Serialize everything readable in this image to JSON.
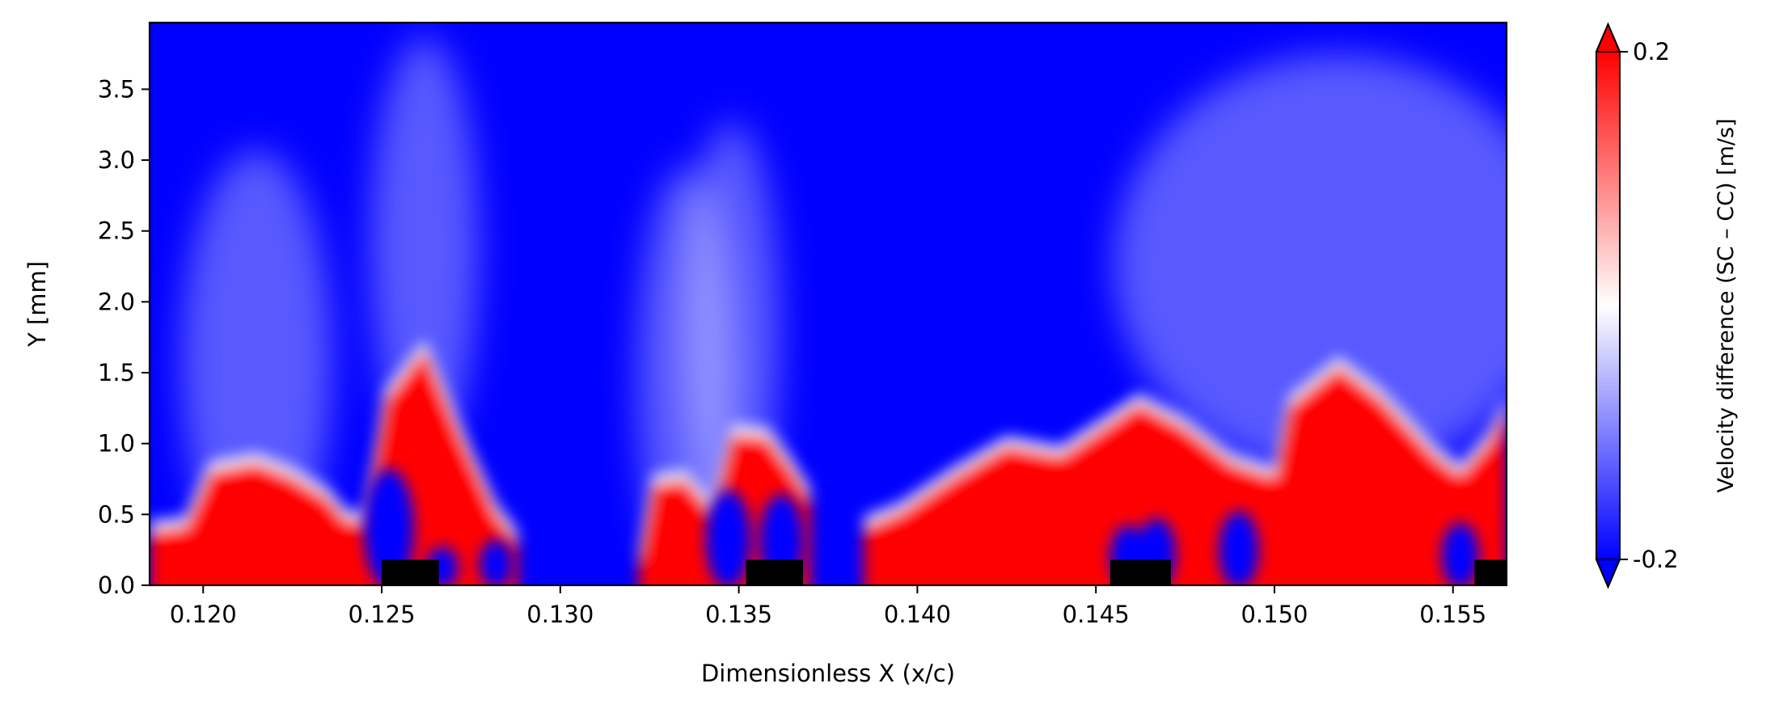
{
  "chart_data": {
    "type": "heatmap",
    "title": "",
    "xlabel": "Dimensionless X (x/c)",
    "ylabel": "Y [mm]",
    "xlim": [
      0.1185,
      0.1565
    ],
    "ylim": [
      0.0,
      3.97
    ],
    "x_ticks": [
      0.12,
      0.125,
      0.13,
      0.135,
      0.14,
      0.145,
      0.15,
      0.155
    ],
    "x_tick_labels": [
      "0.120",
      "0.125",
      "0.130",
      "0.135",
      "0.140",
      "0.145",
      "0.150",
      "0.155"
    ],
    "y_ticks": [
      0.0,
      0.5,
      1.0,
      1.5,
      2.0,
      2.5,
      3.0,
      3.5
    ],
    "y_tick_labels": [
      "0.0",
      "0.5",
      "1.0",
      "1.5",
      "2.0",
      "2.5",
      "3.0",
      "3.5"
    ],
    "colorbar": {
      "label": "Velocity difference (SC – CC) [m/s]",
      "min": -0.2,
      "max": 0.2,
      "ticks": [
        0.2,
        -0.2
      ],
      "tick_labels": [
        "0.2",
        "-0.2"
      ],
      "colormap": "bwr",
      "extend": "both",
      "colors": {
        "low": "#0000ff",
        "mid": "#ffffff",
        "high": "#ff0000"
      }
    },
    "field_background_value": -0.2,
    "positive_regions": [
      {
        "x_start": 0.1185,
        "x_end": 0.1245,
        "top_profile": [
          [
            0.1185,
            0.42
          ],
          [
            0.1195,
            0.45
          ],
          [
            0.1202,
            0.84
          ],
          [
            0.1215,
            0.9
          ],
          [
            0.1225,
            0.8
          ],
          [
            0.1235,
            0.65
          ],
          [
            0.124,
            0.5
          ],
          [
            0.1245,
            0.48
          ]
        ]
      },
      {
        "x_start": 0.1245,
        "x_end": 0.1288,
        "top_profile": [
          [
            0.1245,
            0.5
          ],
          [
            0.1251,
            1.35
          ],
          [
            0.1262,
            1.7
          ],
          [
            0.1272,
            1.1
          ],
          [
            0.1282,
            0.55
          ],
          [
            0.1288,
            0.35
          ]
        ]
      },
      {
        "x_start": 0.1322,
        "x_end": 0.1343,
        "top_profile": [
          [
            0.1322,
            0.2
          ],
          [
            0.1326,
            0.75
          ],
          [
            0.1335,
            0.78
          ],
          [
            0.1343,
            0.55
          ]
        ]
      },
      {
        "x_start": 0.1343,
        "x_end": 0.137,
        "top_profile": [
          [
            0.1343,
            0.6
          ],
          [
            0.1348,
            1.1
          ],
          [
            0.1358,
            1.08
          ],
          [
            0.1365,
            0.85
          ],
          [
            0.137,
            0.65
          ]
        ]
      },
      {
        "x_start": 0.1385,
        "x_end": 0.1565,
        "top_profile": [
          [
            0.1385,
            0.45
          ],
          [
            0.1395,
            0.55
          ],
          [
            0.141,
            0.8
          ],
          [
            0.1425,
            1.02
          ],
          [
            0.144,
            0.95
          ],
          [
            0.1452,
            1.15
          ],
          [
            0.1462,
            1.32
          ],
          [
            0.1475,
            1.15
          ],
          [
            0.1488,
            0.9
          ],
          [
            0.15,
            0.8
          ],
          [
            0.1504,
            1.3
          ],
          [
            0.1518,
            1.58
          ],
          [
            0.153,
            1.35
          ],
          [
            0.1545,
            0.95
          ],
          [
            0.1552,
            0.82
          ],
          [
            0.156,
            1.05
          ],
          [
            0.1565,
            1.3
          ]
        ]
      }
    ],
    "negative_pockets": [
      {
        "x": 0.1252,
        "y_top": 0.8
      },
      {
        "x": 0.1267,
        "y_top": 0.25
      },
      {
        "x": 0.1282,
        "y_top": 0.3
      },
      {
        "x": 0.1347,
        "y_top": 0.65
      },
      {
        "x": 0.1362,
        "y_top": 0.62
      },
      {
        "x": 0.1459,
        "y_top": 0.4
      },
      {
        "x": 0.1467,
        "y_top": 0.45
      },
      {
        "x": 0.149,
        "y_top": 0.5
      },
      {
        "x": 0.1552,
        "y_top": 0.42
      }
    ],
    "wall_blocks": [
      {
        "x_start": 0.125,
        "x_end": 0.1266,
        "y_top": 0.18
      },
      {
        "x_start": 0.1352,
        "x_end": 0.1368,
        "y_top": 0.18
      },
      {
        "x_start": 0.1454,
        "x_end": 0.1471,
        "y_top": 0.18
      },
      {
        "x_start": 0.1556,
        "x_end": 0.1565,
        "y_top": 0.18
      }
    ],
    "grid": false,
    "legend": "none"
  }
}
